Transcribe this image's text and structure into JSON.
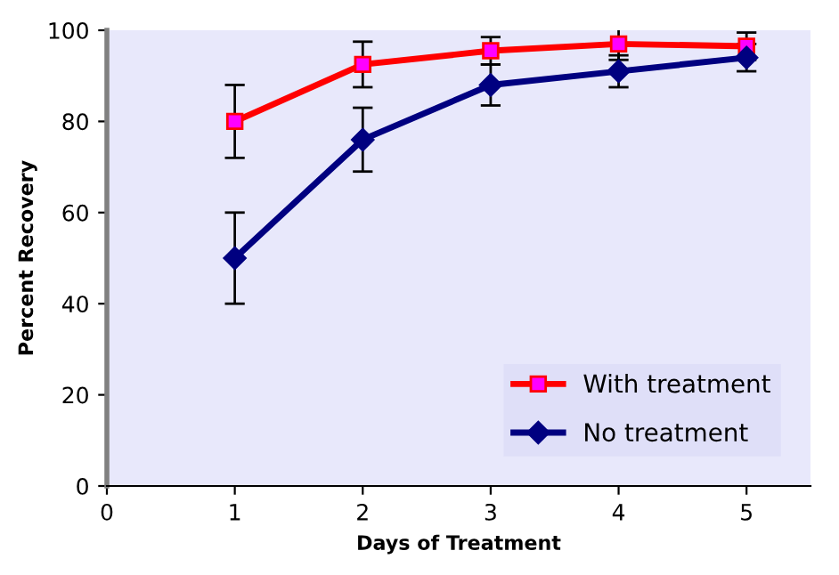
{
  "chart_data": {
    "type": "line",
    "xlabel": "Days of Treatment",
    "ylabel": "Percent Recovery",
    "x": [
      1,
      2,
      3,
      4,
      5
    ],
    "series": [
      {
        "name": "With treatment",
        "color": "#ff0000",
        "marker": "square",
        "values": [
          80,
          92.5,
          95.5,
          97,
          96.5
        ],
        "errors": [
          8,
          5,
          3,
          3.5,
          3
        ]
      },
      {
        "name": "No treatment",
        "color": "#000080",
        "marker": "diamond",
        "values": [
          50,
          76,
          88,
          91,
          94
        ],
        "errors": [
          10,
          7,
          4.5,
          3.5,
          3
        ]
      }
    ],
    "xlim": [
      0,
      5.5
    ],
    "xticks": [
      0,
      1,
      2,
      3,
      4,
      5
    ],
    "ylim": [
      0,
      100
    ],
    "yticks": [
      0,
      20,
      40,
      60,
      80,
      100
    ],
    "grid": false,
    "legend": "bottom right"
  }
}
